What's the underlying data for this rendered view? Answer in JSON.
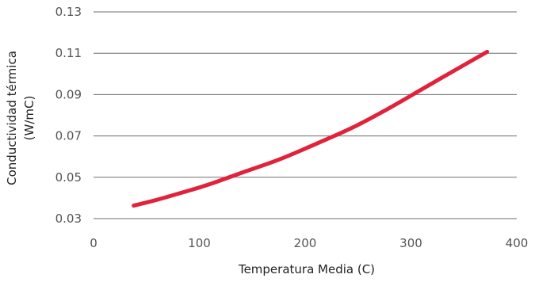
{
  "chart_data": {
    "type": "line",
    "xlabel": "Temperatura Media (C)",
    "ylabel_lines": [
      "Conductividad térmica",
      "(W/mC)"
    ],
    "xlim": [
      0,
      400
    ],
    "ylim": [
      0.03,
      0.13
    ],
    "x_ticks": [
      0,
      100,
      200,
      300,
      400
    ],
    "x_tick_labels": [
      "0",
      "100",
      "200",
      "300",
      "400"
    ],
    "y_ticks": [
      0.03,
      0.05,
      0.07,
      0.09,
      0.11,
      0.13
    ],
    "y_tick_labels": [
      "0.03",
      "0.05",
      "0.07",
      "0.09",
      "0.11",
      "0.13"
    ],
    "grid": "horizontal",
    "series": [
      {
        "color": "#e0223a",
        "x": [
          38,
          60,
          85,
          110,
          140,
          175,
          210,
          245,
          280,
          310,
          345,
          372
        ],
        "y": [
          0.0363,
          0.0391,
          0.0428,
          0.0467,
          0.0522,
          0.0585,
          0.0661,
          0.0741,
          0.0836,
          0.0925,
          0.1028,
          0.1107
        ]
      }
    ]
  }
}
